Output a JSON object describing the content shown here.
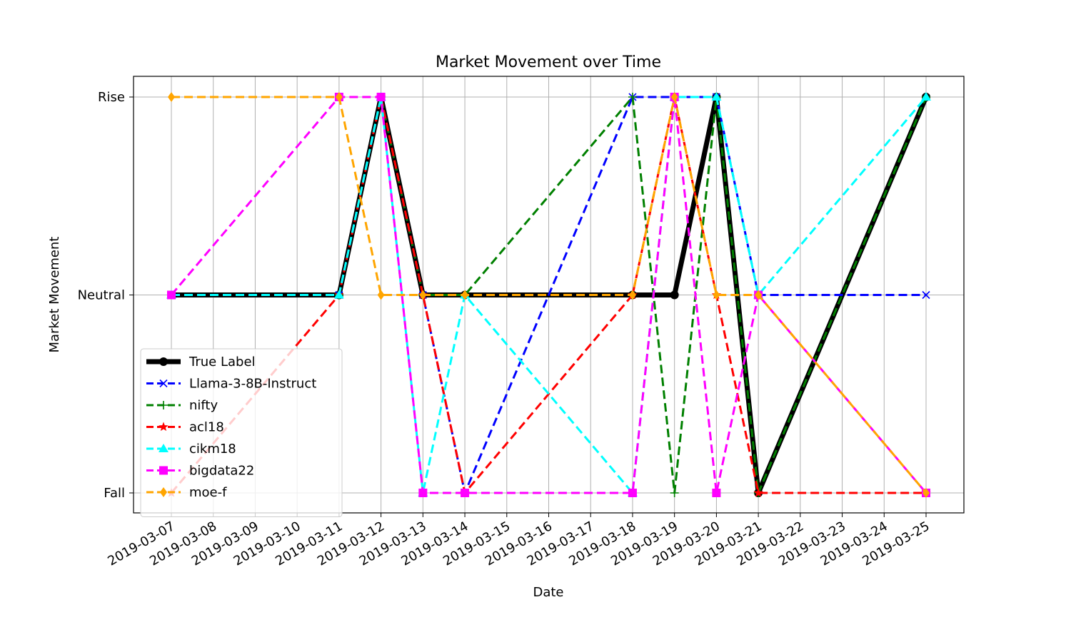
{
  "chart_data": {
    "type": "line",
    "title": "Market Movement over Time",
    "xlabel": "Date",
    "ylabel": "Market Movement",
    "x_ticks": [
      "2019-03-07",
      "2019-03-08",
      "2019-03-09",
      "2019-03-10",
      "2019-03-11",
      "2019-03-12",
      "2019-03-13",
      "2019-03-14",
      "2019-03-15",
      "2019-03-16",
      "2019-03-17",
      "2019-03-18",
      "2019-03-19",
      "2019-03-20",
      "2019-03-21",
      "2019-03-22",
      "2019-03-23",
      "2019-03-24",
      "2019-03-25"
    ],
    "x": [
      "2019-03-07",
      "2019-03-11",
      "2019-03-12",
      "2019-03-13",
      "2019-03-14",
      "2019-03-18",
      "2019-03-19",
      "2019-03-20",
      "2019-03-21",
      "2019-03-25"
    ],
    "y_categories": [
      "Fall",
      "Neutral",
      "Rise"
    ],
    "grid": true,
    "legend_position": "lower-left",
    "series": [
      {
        "name": "True Label",
        "color": "#000000",
        "style": "solid",
        "marker": "circle",
        "values": [
          "Neutral",
          "Neutral",
          "Rise",
          "Neutral",
          "Neutral",
          "Neutral",
          "Neutral",
          "Rise",
          "Fall",
          "Rise"
        ]
      },
      {
        "name": "Llama-3-8B-Instruct",
        "color": "#0000ff",
        "style": "dashed",
        "marker": "x",
        "values": [
          "Neutral",
          "Neutral",
          "Rise",
          "Neutral",
          "Fall",
          "Rise",
          "Rise",
          "Rise",
          "Neutral",
          "Neutral"
        ]
      },
      {
        "name": "nifty",
        "color": "#008000",
        "style": "dashed",
        "marker": "plus",
        "values": [
          "Neutral",
          "Neutral",
          "Rise",
          "Neutral",
          "Neutral",
          "Rise",
          "Fall",
          "Rise",
          "Fall",
          "Rise"
        ]
      },
      {
        "name": "acl18",
        "color": "#ff0000",
        "style": "dashed",
        "marker": "star",
        "values": [
          "Fall",
          "Neutral",
          "Rise",
          "Neutral",
          "Fall",
          "Neutral",
          "Rise",
          "Neutral",
          "Fall",
          "Fall"
        ]
      },
      {
        "name": "cikm18",
        "color": "#00ffff",
        "style": "dashed",
        "marker": "triangle",
        "values": [
          "Neutral",
          "Neutral",
          "Rise",
          "Fall",
          "Neutral",
          "Fall",
          "Rise",
          "Rise",
          "Neutral",
          "Rise"
        ]
      },
      {
        "name": "bigdata22",
        "color": "#ff00ff",
        "style": "dashed",
        "marker": "square",
        "values": [
          "Neutral",
          "Rise",
          "Rise",
          "Fall",
          "Fall",
          "Fall",
          "Rise",
          "Fall",
          "Neutral",
          "Fall"
        ]
      },
      {
        "name": "moe-f",
        "color": "#ffa500",
        "style": "dashed",
        "marker": "diamond",
        "values": [
          "Rise",
          "Rise",
          "Neutral",
          "Neutral",
          "Neutral",
          "Neutral",
          "Rise",
          "Neutral",
          "Neutral",
          "Fall"
        ]
      }
    ]
  }
}
